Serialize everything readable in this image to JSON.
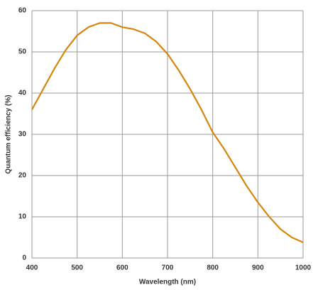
{
  "chart_data": {
    "type": "line",
    "x_label": "Wavelength (nm)",
    "y_label": "Quantum efficiency (%)",
    "x": [
      400,
      425,
      450,
      475,
      500,
      525,
      550,
      575,
      600,
      625,
      650,
      675,
      700,
      725,
      750,
      775,
      800,
      825,
      850,
      875,
      900,
      925,
      950,
      975,
      1000
    ],
    "series": [
      {
        "color": "#d4860f",
        "values": [
          36,
          41,
          46,
          50.5,
          54,
          56,
          57,
          57,
          56,
          55.5,
          54.5,
          52.5,
          49.5,
          45.5,
          41,
          36,
          30.5,
          26.5,
          22,
          17.5,
          13.5,
          10,
          7,
          5,
          3.8
        ]
      }
    ],
    "xlim": [
      400,
      1000
    ],
    "xticks": [
      400,
      500,
      600,
      700,
      800,
      900,
      1000
    ],
    "ylim": [
      0,
      60
    ],
    "yticks": [
      0,
      10,
      20,
      30,
      40,
      50,
      60
    ],
    "grid": true
  }
}
